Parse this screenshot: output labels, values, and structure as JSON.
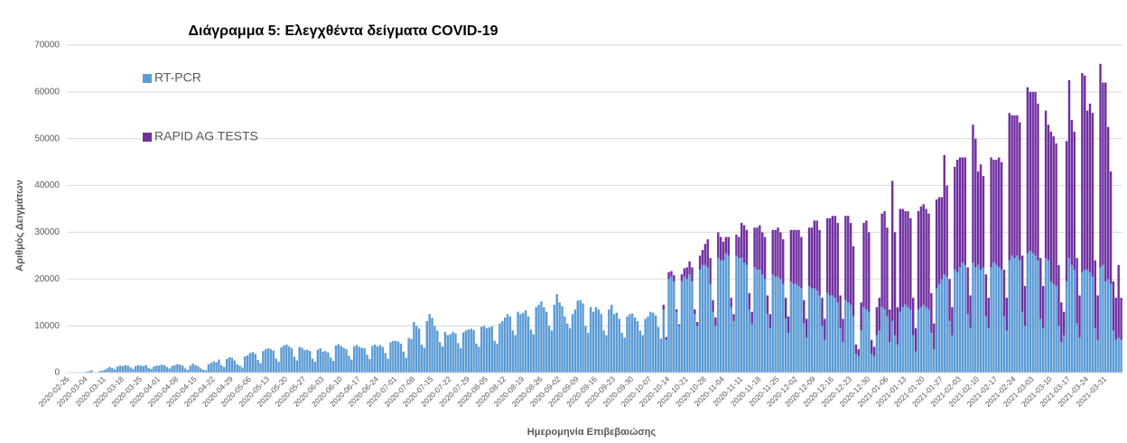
{
  "chart_data": {
    "type": "stacked-bar",
    "title": "Διάγραμμα 5: Ελεγχθέντα δείγματα COVID-19",
    "x_label": "Ημερομηνία Επιβεβαιώσης",
    "y_label": "Αριθμός Δειγμάτων",
    "ylim": [
      0,
      70000
    ],
    "yticks": [
      0,
      10000,
      20000,
      30000,
      40000,
      50000,
      60000,
      70000
    ],
    "grid": true,
    "legend": "upper left",
    "categories": [
      "2020-02-26",
      null,
      null,
      null,
      null,
      null,
      null,
      "2020-03-04",
      null,
      null,
      null,
      null,
      null,
      null,
      "2020-03-11",
      null,
      null,
      null,
      null,
      null,
      null,
      "2020-03-18",
      null,
      null,
      null,
      null,
      null,
      null,
      "2020-03-25",
      null,
      null,
      null,
      null,
      null,
      null,
      "2020-04-01",
      null,
      null,
      null,
      null,
      null,
      null,
      "2020-04-08",
      null,
      null,
      null,
      null,
      null,
      null,
      "2020-04-15",
      null,
      null,
      null,
      null,
      null,
      null,
      "2020-04-22",
      null,
      null,
      null,
      null,
      null,
      null,
      "2020-04-29",
      null,
      null,
      null,
      null,
      null,
      null,
      "2020-05-06",
      null,
      null,
      null,
      null,
      null,
      null,
      "2020-05-13",
      null,
      null,
      null,
      null,
      null,
      null,
      "2020-05-20",
      null,
      null,
      null,
      null,
      null,
      null,
      "2020-05-27",
      null,
      null,
      null,
      null,
      null,
      null,
      "2020-06-03",
      null,
      null,
      null,
      null,
      null,
      null,
      "2020-06-10",
      null,
      null,
      null,
      null,
      null,
      null,
      "2020-06-17",
      null,
      null,
      null,
      null,
      null,
      null,
      "2020-06-24",
      null,
      null,
      null,
      null,
      null,
      null,
      "2020-07-01",
      null,
      null,
      null,
      null,
      null,
      null,
      "2020-07-08",
      null,
      null,
      null,
      null,
      null,
      null,
      "2020-07-15",
      null,
      null,
      null,
      null,
      null,
      null,
      "2020-07-22",
      null,
      null,
      null,
      null,
      null,
      null,
      "2020-07-29",
      null,
      null,
      null,
      null,
      null,
      null,
      "2020-08-05",
      null,
      null,
      null,
      null,
      null,
      null,
      "2020-08-12",
      null,
      null,
      null,
      null,
      null,
      null,
      "2020-08-19",
      null,
      null,
      null,
      null,
      null,
      null,
      "2020-08-26",
      null,
      null,
      null,
      null,
      null,
      null,
      "2020-09-02",
      null,
      null,
      null,
      null,
      null,
      null,
      "2020-09-09",
      null,
      null,
      null,
      null,
      null,
      null,
      "2020-09-16",
      null,
      null,
      null,
      null,
      null,
      null,
      "2020-09-23",
      null,
      null,
      null,
      null,
      null,
      null,
      "2020-09-30",
      null,
      null,
      null,
      null,
      null,
      null,
      "2020-10-07",
      null,
      null,
      null,
      null,
      null,
      null,
      "2020-10-14",
      null,
      null,
      null,
      null,
      null,
      null,
      "2020-10-21",
      null,
      null,
      null,
      null,
      null,
      null,
      "2020-10-28",
      null,
      null,
      null,
      null,
      null,
      null,
      "2020-11-04",
      null,
      null,
      null,
      null,
      null,
      null,
      "2020-11-11",
      null,
      null,
      null,
      null,
      null,
      null,
      "2020-11-18",
      null,
      null,
      null,
      null,
      null,
      null,
      "2020-11-25",
      null,
      null,
      null,
      null,
      null,
      null,
      "2020-12-02",
      null,
      null,
      null,
      null,
      null,
      null,
      "2020-12-09",
      null,
      null,
      null,
      null,
      null,
      null,
      "2020-12-16",
      null,
      null,
      null,
      null,
      null,
      null,
      "2020-12-23",
      null,
      null,
      null,
      null,
      null,
      null,
      "2020-12-30",
      null,
      null,
      null,
      null,
      null,
      null,
      "2021-01-06",
      null,
      null,
      null,
      null,
      null,
      null,
      "2021-01-13",
      null,
      null,
      null,
      null,
      null,
      null,
      "2021-01-20",
      null,
      null,
      null,
      null,
      null,
      null,
      "2021-01-27",
      null,
      null,
      null,
      null,
      null,
      null,
      "2021-02-03",
      null,
      null,
      null,
      null,
      null,
      null,
      "2021-02-10",
      null,
      null,
      null,
      null,
      null,
      null,
      "2021-02-17",
      null,
      null,
      null,
      null,
      null,
      null,
      "2021-02-24",
      null,
      null,
      null,
      null,
      null,
      null,
      "2021-03-03",
      null,
      null,
      null,
      null,
      null,
      null,
      "2021-03-10",
      null,
      null,
      null,
      null,
      null,
      null,
      "2021-03-17",
      null,
      null,
      null,
      null,
      null,
      null,
      "2021-03-24",
      null,
      null,
      null,
      null,
      null,
      null,
      "2021-03-31",
      null,
      null,
      null,
      null,
      null,
      null
    ],
    "series": [
      {
        "name": "RT-PCR",
        "color": "#5b9bd5",
        "values": [
          0,
          0,
          0,
          0,
          0,
          100,
          0,
          200,
          300,
          500,
          100,
          100,
          300,
          400,
          600,
          900,
          1200,
          1000,
          700,
          1300,
          1500,
          1400,
          1600,
          1500,
          1100,
          800,
          1400,
          1600,
          1500,
          1400,
          1600,
          1000,
          800,
          1300,
          1500,
          1500,
          1700,
          1600,
          1200,
          900,
          1400,
          1600,
          1800,
          1700,
          1500,
          900,
          600,
          1500,
          1900,
          1600,
          1400,
          900,
          600,
          500,
          1800,
          2100,
          2400,
          2200,
          2800,
          1600,
          1200,
          2900,
          3300,
          3200,
          2600,
          1800,
          1500,
          1100,
          3500,
          3700,
          4200,
          4400,
          4000,
          2700,
          2000,
          4600,
          5000,
          5200,
          5000,
          4700,
          3000,
          2300,
          5400,
          5800,
          6000,
          5600,
          5200,
          3400,
          2600,
          5500,
          5300,
          4800,
          4900,
          4600,
          3000,
          2300,
          4900,
          5200,
          4500,
          4600,
          4300,
          3200,
          2500,
          5800,
          6100,
          5700,
          5300,
          5000,
          3600,
          2800,
          5600,
          5900,
          5500,
          5300,
          5200,
          3800,
          2900,
          5700,
          6000,
          5600,
          5900,
          5500,
          4200,
          3000,
          6500,
          6800,
          6800,
          6600,
          6200,
          4500,
          3200,
          7400,
          7200,
          10800,
          10000,
          9400,
          6000,
          5300,
          11000,
          12500,
          11700,
          10000,
          9000,
          6500,
          5600,
          8700,
          8000,
          8200,
          8700,
          8400,
          6300,
          5200,
          8600,
          9000,
          9200,
          9400,
          9100,
          6200,
          5500,
          9800,
          10000,
          9500,
          9700,
          9900,
          6800,
          6200,
          10500,
          11000,
          11800,
          12500,
          12000,
          9000,
          8000,
          13000,
          12500,
          12800,
          13300,
          12000,
          9200,
          8200,
          14000,
          14500,
          15200,
          14000,
          13000,
          10000,
          9000,
          14500,
          16800,
          15000,
          14200,
          12000,
          10500,
          9500,
          12500,
          13500,
          15400,
          15500,
          14800,
          10000,
          8500,
          14000,
          13000,
          14000,
          13500,
          12500,
          9000,
          8000,
          13500,
          14500,
          12500,
          12800,
          11500,
          8500,
          7500,
          12000,
          12500,
          12600,
          11800,
          11000,
          9000,
          8000,
          11500,
          12000,
          13000,
          12800,
          12200,
          9500,
          7000,
          13500,
          7000,
          20000,
          20500,
          19500,
          13000,
          10000,
          19500,
          20500,
          20000,
          21000,
          19500,
          12500,
          10000,
          22000,
          23000,
          23000,
          22500,
          19000,
          13000,
          10000,
          24500,
          24000,
          24000,
          25500,
          25000,
          14000,
          11000,
          25000,
          24500,
          24500,
          23500,
          23000,
          13500,
          10500,
          22500,
          22000,
          22000,
          21000,
          20000,
          12500,
          9500,
          21000,
          20500,
          20500,
          20000,
          19000,
          11500,
          8500,
          19500,
          19000,
          19000,
          18500,
          18000,
          10500,
          7500,
          18500,
          18000,
          18000,
          17500,
          16500,
          10000,
          7000,
          17000,
          16500,
          16500,
          16000,
          15000,
          9500,
          6500,
          15500,
          15000,
          14500,
          12000,
          4000,
          3500,
          9000,
          14000,
          13500,
          13000,
          4000,
          3500,
          8000,
          9000,
          14000,
          13500,
          12000,
          6500,
          11000,
          8000,
          6000,
          13000,
          14000,
          14500,
          14000,
          13500,
          8000,
          4500,
          13500,
          14000,
          14500,
          14000,
          13500,
          8500,
          5000,
          18000,
          19000,
          20000,
          21000,
          20500,
          11000,
          8000,
          22000,
          21500,
          22500,
          23500,
          23000,
          12500,
          9500,
          23500,
          22500,
          23000,
          22000,
          22500,
          12000,
          9500,
          22500,
          23500,
          23000,
          22500,
          22000,
          12000,
          9000,
          24000,
          25000,
          24500,
          25000,
          24000,
          13000,
          10000,
          25500,
          26000,
          25500,
          25000,
          24000,
          11500,
          9500,
          24500,
          24000,
          19500,
          19000,
          18500,
          10000,
          6500,
          8000,
          19500,
          24500,
          23000,
          22000,
          10500,
          7500,
          21500,
          22000,
          22000,
          21500,
          20500,
          9500,
          7000,
          22500,
          23000,
          19500,
          20000,
          19000,
          9000,
          7000,
          7500,
          7000
        ]
      },
      {
        "name": "RAPID AG TESTS",
        "color": "#7030a0",
        "values": [
          0,
          0,
          0,
          0,
          0,
          0,
          0,
          0,
          0,
          0,
          0,
          0,
          0,
          0,
          0,
          0,
          0,
          0,
          0,
          0,
          0,
          0,
          0,
          0,
          0,
          0,
          0,
          0,
          0,
          0,
          0,
          0,
          0,
          0,
          0,
          0,
          0,
          0,
          0,
          0,
          0,
          0,
          0,
          0,
          0,
          0,
          0,
          0,
          0,
          0,
          0,
          0,
          0,
          0,
          0,
          0,
          0,
          0,
          0,
          0,
          0,
          0,
          0,
          0,
          0,
          0,
          0,
          0,
          0,
          0,
          0,
          0,
          0,
          0,
          0,
          0,
          0,
          0,
          0,
          0,
          0,
          0,
          0,
          0,
          0,
          0,
          0,
          0,
          0,
          0,
          0,
          0,
          0,
          0,
          0,
          0,
          0,
          0,
          0,
          0,
          0,
          0,
          0,
          0,
          0,
          0,
          0,
          0,
          0,
          0,
          0,
          0,
          0,
          0,
          0,
          0,
          0,
          0,
          0,
          0,
          0,
          0,
          0,
          0,
          0,
          0,
          0,
          0,
          0,
          0,
          0,
          0,
          0,
          0,
          0,
          0,
          0,
          0,
          0,
          0,
          0,
          0,
          0,
          0,
          0,
          0,
          0,
          0,
          0,
          0,
          0,
          0,
          0,
          0,
          0,
          0,
          0,
          0,
          0,
          0,
          0,
          0,
          0,
          0,
          0,
          0,
          0,
          0,
          0,
          0,
          0,
          0,
          0,
          0,
          0,
          0,
          0,
          0,
          0,
          0,
          0,
          0,
          0,
          0,
          0,
          0,
          0,
          0,
          0,
          0,
          0,
          0,
          0,
          0,
          0,
          0,
          0,
          0,
          0,
          0,
          0,
          0,
          0,
          0,
          0,
          0,
          0,
          0,
          0,
          0,
          0,
          0,
          0,
          0,
          0,
          0,
          0,
          0,
          0,
          0,
          0,
          0,
          0,
          0,
          0,
          0,
          0,
          200,
          200,
          1000,
          600,
          1500,
          1200,
          1300,
          500,
          300,
          1500,
          1800,
          2500,
          2800,
          3000,
          1000,
          800,
          3000,
          3200,
          4500,
          6000,
          5500,
          2500,
          1800,
          5500,
          5000,
          4000,
          3500,
          4000,
          2000,
          1500,
          4500,
          4500,
          7500,
          8000,
          7500,
          3500,
          2500,
          8500,
          9000,
          9500,
          9000,
          9000,
          4000,
          3000,
          9500,
          10000,
          10500,
          10000,
          9500,
          4500,
          3500,
          11000,
          11500,
          11500,
          12000,
          11000,
          5000,
          4000,
          12500,
          13000,
          14500,
          15000,
          14000,
          6000,
          4500,
          16000,
          16500,
          17000,
          17500,
          17000,
          7000,
          5000,
          18000,
          18500,
          17500,
          15000,
          2000,
          1500,
          6000,
          18000,
          19000,
          17000,
          3000,
          2000,
          6000,
          7000,
          20000,
          21000,
          19000,
          7000,
          30000,
          22000,
          8000,
          22000,
          21000,
          20000,
          20500,
          19500,
          8000,
          5000,
          21000,
          21500,
          21500,
          21000,
          20500,
          8500,
          5500,
          19000,
          18500,
          17500,
          25500,
          19500,
          9000,
          6000,
          22000,
          24000,
          23500,
          22500,
          23000,
          10000,
          7000,
          29500,
          27500,
          20000,
          22500,
          19500,
          9000,
          6500,
          23500,
          22000,
          22500,
          23500,
          23000,
          10000,
          7000,
          31500,
          30000,
          30500,
          30000,
          29500,
          12000,
          8500,
          35500,
          34000,
          34500,
          35000,
          33500,
          13000,
          9000,
          31500,
          29000,
          32000,
          31500,
          30500,
          13000,
          8500,
          5000,
          30000,
          38000,
          31000,
          29500,
          14000,
          9000,
          42500,
          41500,
          34000,
          36000,
          35000,
          14500,
          9500,
          43500,
          39000,
          42500,
          32500,
          24000,
          10500,
          9000,
          15500,
          9000
        ]
      }
    ]
  }
}
